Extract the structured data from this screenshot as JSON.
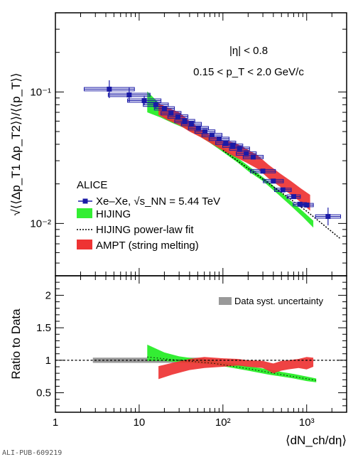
{
  "figure_id": "ALI-PUB-609219",
  "colors": {
    "data": "#1a1aa6",
    "hijing": "#33ee33",
    "ampt": "#ee3333",
    "fit": "#000000",
    "syst": "#999999"
  },
  "chart_data": [
    {
      "type": "scatter",
      "title": "",
      "xlabel": "⟨dN_ch/dη⟩",
      "ylabel": "√⟨⟨Δp_T1 Δp_T2⟩⟩/⟨⟨p_T⟩⟩",
      "xscale": "log",
      "yscale": "log",
      "xlim": [
        1,
        3000
      ],
      "ylim": [
        0.004,
        0.4
      ],
      "x_ticks": [
        "1",
        "10",
        "10²",
        "10³"
      ],
      "y_ticks": [
        "10⁻²",
        "10⁻¹"
      ],
      "annotations": [
        "|η| < 0.8",
        "0.15 < p_T < 2.0 GeV/c"
      ],
      "legend_title": "ALICE",
      "legend_position": "bottom-left",
      "legend": {
        "data": "Xe–Xe,  √s_NN = 5.44 TeV",
        "hijing": "HIJING",
        "fit": "HIJING power-law fit",
        "ampt": "AMPT (string melting)"
      },
      "series": [
        {
          "name": "Xe–Xe,  √s_NN = 5.44 TeV",
          "kind": "points",
          "x": [
            4.4,
            7.6,
            11.5,
            15.8,
            20,
            24,
            29,
            35,
            42,
            51,
            61,
            74,
            90,
            108,
            131,
            158,
            190,
            230,
            300,
            400,
            520,
            700,
            830,
            1000,
            1800
          ],
          "y": [
            0.105,
            0.095,
            0.086,
            0.08,
            0.075,
            0.069,
            0.065,
            0.06,
            0.057,
            0.053,
            0.05,
            0.047,
            0.044,
            0.041,
            0.039,
            0.037,
            0.034,
            0.032,
            0.025,
            0.021,
            0.018,
            0.016,
            0.014,
            0.0138,
            0.0113
          ],
          "xerr": [
            0.3,
            0.25,
            0.2,
            0.15,
            0.12,
            0.12,
            0.12,
            0.12,
            0.12,
            0.12,
            0.12,
            0.12,
            0.12,
            0.12,
            0.12,
            0.12,
            0.12,
            0.12,
            0.15,
            0.12,
            0.1,
            0.08,
            0.08,
            0.08,
            0.15
          ],
          "yerr": [
            0.15,
            0.12,
            0.08,
            0.06,
            0.04,
            0.03,
            0.03,
            0.03,
            0.03,
            0.03,
            0.03,
            0.03,
            0.03,
            0.03,
            0.03,
            0.03,
            0.03,
            0.03,
            0.03,
            0.03,
            0.03,
            0.03,
            0.03,
            0.03,
            0.15
          ]
        },
        {
          "name": "HIJING",
          "kind": "band",
          "x": [
            12.5,
            18,
            25,
            35,
            50,
            70,
            100,
            150,
            200,
            300,
            450,
            650,
            900,
            1200
          ],
          "low": [
            0.07,
            0.064,
            0.058,
            0.053,
            0.047,
            0.041,
            0.035,
            0.029,
            0.025,
            0.021,
            0.0168,
            0.0136,
            0.0112,
            0.0093
          ],
          "high": [
            0.101,
            0.08,
            0.068,
            0.059,
            0.051,
            0.044,
            0.038,
            0.0315,
            0.0275,
            0.0225,
            0.0182,
            0.0148,
            0.0124,
            0.0105
          ]
        },
        {
          "name": "AMPT (string melting)",
          "kind": "band",
          "x": [
            17,
            22,
            30,
            40,
            55,
            75,
            100,
            140,
            190,
            260,
            350,
            480,
            650,
            850,
            1100
          ],
          "low": [
            0.067,
            0.061,
            0.056,
            0.05,
            0.045,
            0.04,
            0.036,
            0.032,
            0.029,
            0.026,
            0.022,
            0.019,
            0.0165,
            0.0145,
            0.0125
          ],
          "high": [
            0.082,
            0.076,
            0.07,
            0.06,
            0.052,
            0.046,
            0.043,
            0.041,
            0.037,
            0.033,
            0.028,
            0.024,
            0.021,
            0.0185,
            0.0165
          ]
        },
        {
          "name": "HIJING power-law fit",
          "kind": "line",
          "x": [
            100,
            200,
            500,
            1000,
            2500
          ],
          "y": [
            0.036,
            0.0262,
            0.0172,
            0.0124,
            0.0077
          ]
        }
      ]
    },
    {
      "type": "scatter",
      "title": "",
      "xlabel": "⟨dN_ch/dη⟩",
      "ylabel": "Ratio to Data",
      "xscale": "log",
      "xlim": [
        1,
        3000
      ],
      "ylim": [
        0.2,
        2.3
      ],
      "x_ticks": [
        "1",
        "10",
        "10²",
        "10³"
      ],
      "y_ticks": [
        "0.5",
        "1",
        "1.5",
        "2"
      ],
      "legend": {
        "syst": "Data syst. uncertainty"
      },
      "legend_position": "top-right",
      "reference_line": 1,
      "series": [
        {
          "name": "Data syst. uncertainty",
          "kind": "band",
          "x": [
            2.8,
            1300
          ],
          "low": [
            0.96,
            0.96
          ],
          "high": [
            1.04,
            1.04
          ]
        },
        {
          "name": "HIJING",
          "kind": "band",
          "x": [
            12.5,
            20,
            30,
            50,
            80,
            120,
            200,
            350,
            500,
            700,
            1000,
            1300
          ],
          "low": [
            0.99,
            0.99,
            0.97,
            0.95,
            0.93,
            0.89,
            0.84,
            0.78,
            0.75,
            0.72,
            0.68,
            0.66
          ],
          "high": [
            1.24,
            1.12,
            1.06,
            1.02,
            0.99,
            0.96,
            0.91,
            0.86,
            0.82,
            0.79,
            0.75,
            0.72
          ]
        },
        {
          "name": "HIJING central",
          "kind": "line",
          "style": "dotted",
          "x": [
            12.5,
            30,
            80,
            200,
            500,
            1300
          ],
          "y": [
            1.05,
            1.0,
            0.95,
            0.87,
            0.78,
            0.69
          ]
        },
        {
          "name": "AMPT (string melting)",
          "kind": "band",
          "x": [
            17,
            25,
            40,
            60,
            100,
            150,
            200,
            300,
            400,
            500,
            600,
            800,
            1000,
            1200
          ],
          "low": [
            0.71,
            0.78,
            0.85,
            0.88,
            0.9,
            0.92,
            0.9,
            0.88,
            0.8,
            0.84,
            0.86,
            0.88,
            0.86,
            0.9
          ],
          "high": [
            0.91,
            0.96,
            1.02,
            1.05,
            1.03,
            1.02,
            1.0,
            0.99,
            0.95,
            0.99,
            1.0,
            1.02,
            1.05,
            1.04
          ]
        }
      ]
    }
  ]
}
